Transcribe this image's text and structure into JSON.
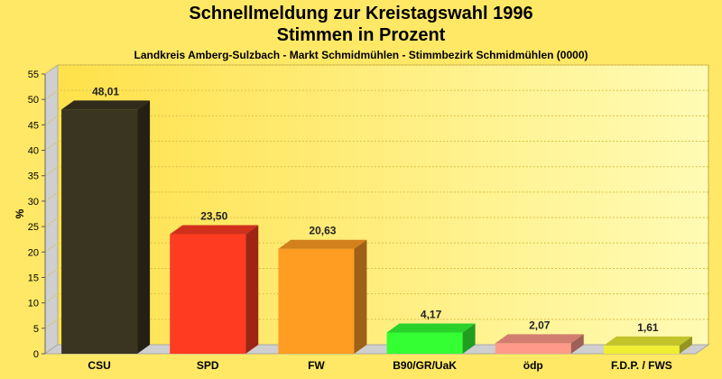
{
  "chart_data": {
    "type": "bar",
    "title": "Schnellmeldung zur Kreistagswahl 1996",
    "subtitle": "Stimmen in Prozent",
    "subsubtitle": "Landkreis Amberg-Sulzbach - Markt Schmidmühlen - Stimmbezirk Schmidmühlen (0000)",
    "ylabel": "%",
    "ylim": [
      0,
      55
    ],
    "yticks": [
      "0",
      "5",
      "10",
      "15",
      "20",
      "25",
      "30",
      "35",
      "40",
      "45",
      "50",
      "55"
    ],
    "grid": true,
    "categories": [
      "CSU",
      "SPD",
      "FW",
      "B90/GR/UaK",
      "ödp",
      "F.D.P. / FWS"
    ],
    "values": [
      48.01,
      23.5,
      20.63,
      4.17,
      2.07,
      1.61
    ],
    "value_labels": [
      "48,01",
      "23,50",
      "20,63",
      "4,17",
      "2,07",
      "1,61"
    ],
    "colors": [
      "#3a3520",
      "#ff3b22",
      "#ff9c22",
      "#33ff33",
      "#ff9a8a",
      "#eeee33"
    ]
  }
}
